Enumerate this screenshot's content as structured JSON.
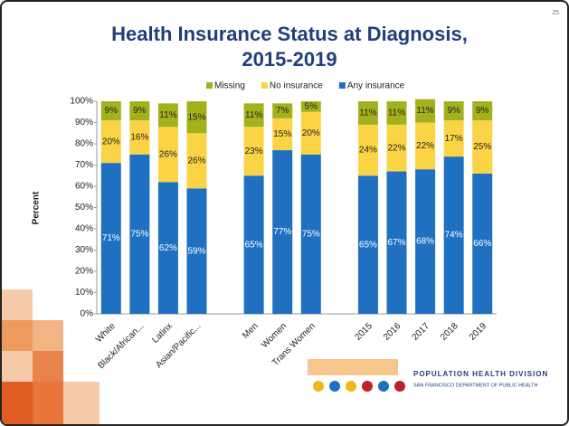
{
  "chart_data": {
    "type": "stacked-bar",
    "title": [
      "Health Insurance Status at Diagnosis,",
      "2015-2019"
    ],
    "y_label": "Percent",
    "categories": [
      "White",
      "Black/African...",
      "Latinx",
      "Asian/Pacific...",
      null,
      "Men",
      "Women",
      "Trans Women",
      null,
      "2015",
      "2016",
      "2017",
      "2018",
      "2019"
    ],
    "series": [
      {
        "name": "Missing",
        "color": "#a3b21c",
        "label_color": "#222222",
        "values": [
          9,
          9,
          11,
          15,
          null,
          11,
          7,
          5,
          null,
          11,
          11,
          11,
          9,
          9
        ],
        "value_labels": [
          "9%",
          "9%",
          "11%",
          "15%",
          null,
          "11%",
          "7%",
          "5%",
          null,
          "11%",
          "11%",
          "11%",
          "9%",
          "9%"
        ]
      },
      {
        "name": "No insurance",
        "color": "#fad444",
        "label_color": "#222222",
        "values": [
          20,
          16,
          26,
          26,
          null,
          23,
          15,
          20,
          null,
          24,
          22,
          22,
          17,
          25
        ],
        "value_labels": [
          "20%",
          "16%",
          "26%",
          "26%",
          null,
          "23%",
          "15%",
          "20%",
          null,
          "24%",
          "22%",
          "22%",
          "17%",
          "25%"
        ]
      },
      {
        "name": "Any insurance",
        "color": "#1f70c1",
        "label_color": "#ffffff",
        "values": [
          71,
          75,
          62,
          59,
          null,
          65,
          77,
          75,
          null,
          65,
          67,
          68,
          74,
          66
        ],
        "value_labels": [
          "71%",
          "75%",
          "62%",
          "59%",
          null,
          "65%",
          "77%",
          "75%",
          null,
          "65%",
          "67%",
          "68%",
          "74%",
          "66%"
        ]
      }
    ],
    "ylim": [
      0,
      100
    ],
    "yticks": [
      {
        "value": 0,
        "label": "0%"
      },
      {
        "value": 10,
        "label": "10%"
      },
      {
        "value": 20,
        "label": "20%"
      },
      {
        "value": 30,
        "label": "30%"
      },
      {
        "value": 40,
        "label": "40%"
      },
      {
        "value": 50,
        "label": "50%"
      },
      {
        "value": 60,
        "label": "60%"
      },
      {
        "value": 70,
        "label": "70%"
      },
      {
        "value": 80,
        "label": "80%"
      },
      {
        "value": 90,
        "label": "90%"
      },
      {
        "value": 100,
        "label": "100%"
      }
    ],
    "legend": "top"
  },
  "page_number": "25",
  "footer": {
    "title": "POPULATION HEALTH DIVISION",
    "subtitle": "SAN FRANCISCO DEPARTMENT OF PUBLIC HEALTH"
  }
}
